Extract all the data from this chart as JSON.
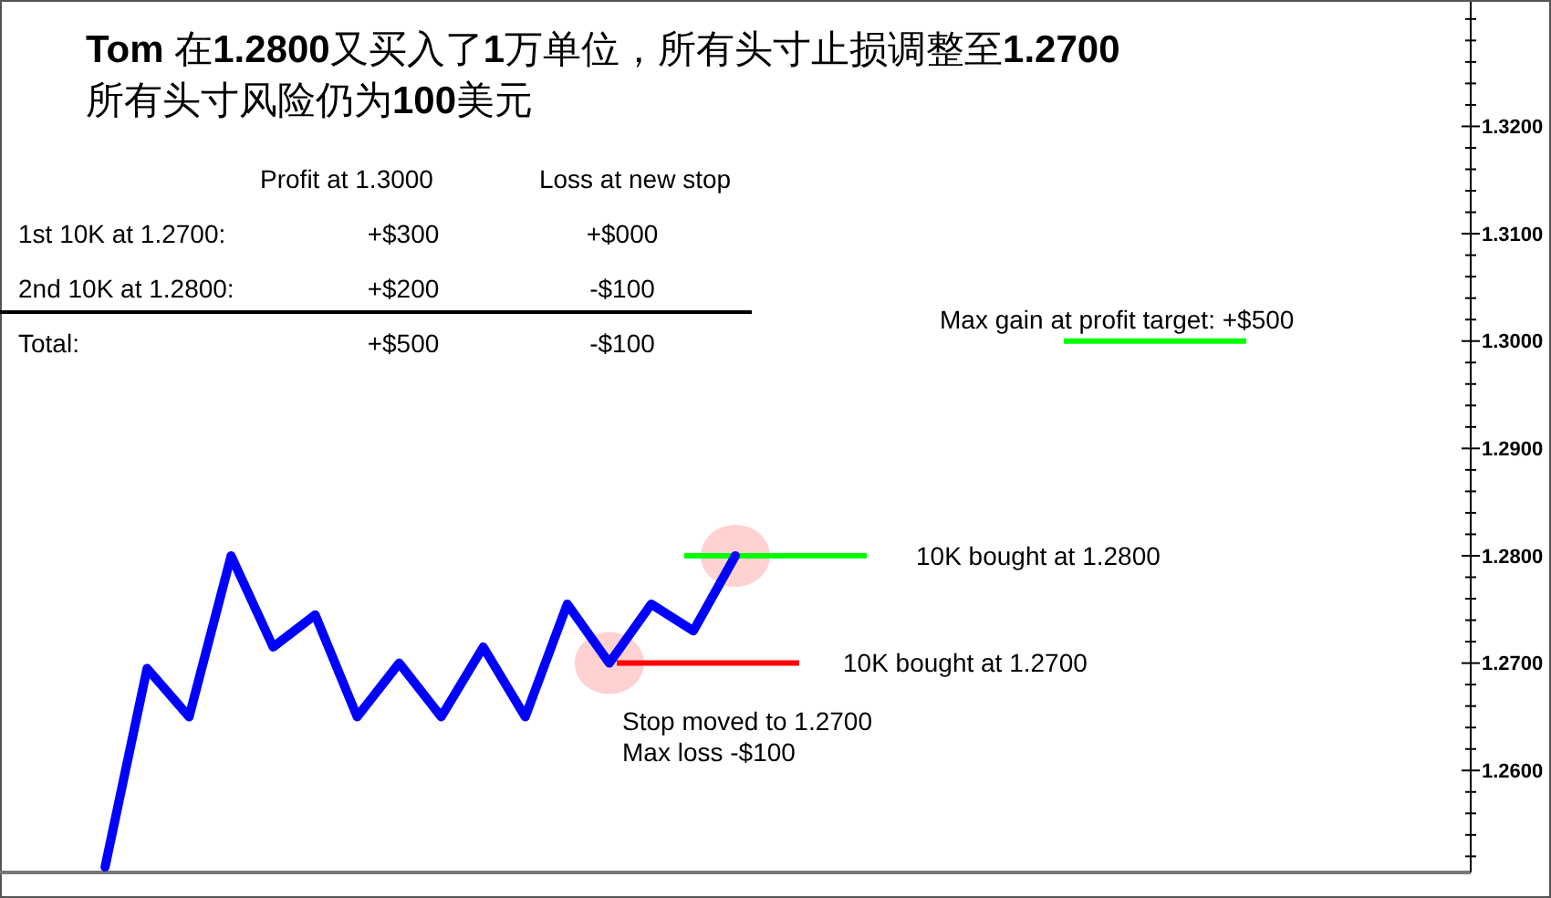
{
  "chart_data": {
    "type": "line",
    "title": "Tom 在1.2800又买入了1万单位，所有头寸止损调整至1.2700",
    "subtitle": "所有头寸风险仍为100美元",
    "categories": [
      null,
      null,
      null,
      null,
      null,
      null,
      null,
      null,
      null,
      null,
      null,
      null,
      null,
      null,
      null,
      null,
      null,
      null,
      null,
      null,
      null,
      null,
      null,
      null,
      null,
      null,
      null,
      null,
      null,
      null,
      null,
      null,
      null,
      null,
      null
    ],
    "series": [
      {
        "color": "#0000ff",
        "values": [
          null,
          null,
          1.251,
          1.2695,
          1.265,
          1.28,
          1.2715,
          1.2745,
          1.265,
          1.27,
          1.265,
          1.2715,
          1.265,
          1.2755,
          1.27,
          1.2755,
          1.273,
          1.28,
          null,
          null,
          null,
          null,
          null,
          null,
          null,
          null,
          null,
          null,
          null,
          null,
          null,
          null,
          null,
          null,
          null
        ]
      }
    ],
    "ylim": [
      1.2505,
      1.3316
    ],
    "yticks": [
      {
        "value": 1.252,
        "label": null
      },
      {
        "value": 1.254,
        "label": null
      },
      {
        "value": 1.256,
        "label": null
      },
      {
        "value": 1.258,
        "label": null
      },
      {
        "value": 1.26,
        "label": "1.2600"
      },
      {
        "value": 1.262,
        "label": null
      },
      {
        "value": 1.264,
        "label": null
      },
      {
        "value": 1.266,
        "label": null
      },
      {
        "value": 1.268,
        "label": null
      },
      {
        "value": 1.27,
        "label": "1.2700"
      },
      {
        "value": 1.272,
        "label": null
      },
      {
        "value": 1.274,
        "label": null
      },
      {
        "value": 1.276,
        "label": null
      },
      {
        "value": 1.278,
        "label": null
      },
      {
        "value": 1.28,
        "label": "1.2800"
      },
      {
        "value": 1.282,
        "label": null
      },
      {
        "value": 1.284,
        "label": null
      },
      {
        "value": 1.286,
        "label": null
      },
      {
        "value": 1.288,
        "label": null
      },
      {
        "value": 1.29,
        "label": "1.2900"
      },
      {
        "value": 1.292,
        "label": null
      },
      {
        "value": 1.294,
        "label": null
      },
      {
        "value": 1.296,
        "label": null
      },
      {
        "value": 1.298,
        "label": null
      },
      {
        "value": 1.3,
        "label": "1.3000"
      },
      {
        "value": 1.302,
        "label": null
      },
      {
        "value": 1.304,
        "label": null
      },
      {
        "value": 1.306,
        "label": null
      },
      {
        "value": 1.308,
        "label": null
      },
      {
        "value": 1.31,
        "label": "1.3100"
      },
      {
        "value": 1.312,
        "label": null
      },
      {
        "value": 1.314,
        "label": null
      },
      {
        "value": 1.316,
        "label": null
      },
      {
        "value": 1.318,
        "label": null
      },
      {
        "value": 1.32,
        "label": "1.3200"
      },
      {
        "value": 1.322,
        "label": null
      },
      {
        "value": 1.324,
        "label": null
      },
      {
        "value": 1.326,
        "label": null
      },
      {
        "value": 1.328,
        "label": null
      },
      {
        "value": 1.33,
        "label": null
      }
    ],
    "ref_lines": [
      {
        "axis": "y",
        "value": 1.28,
        "label": "10K bought at 1.2800",
        "color": "#00ff00"
      },
      {
        "axis": "y",
        "value": 1.27,
        "label": "10K bought at 1.2700",
        "color": "#ff0000"
      },
      {
        "axis": "y",
        "value": 1.3,
        "label": "Max gain at profit target: +$500",
        "color": "#00ff00"
      }
    ],
    "annotations": [
      "Stop moved to 1.2700",
      "Max loss -$100",
      "Profit at 1.3000",
      "Loss at new stop",
      "1st 10K at 1.2700:",
      "+$300",
      "+$000",
      "2nd 10K at 1.2800:",
      "+$200",
      "-$100",
      "Total:",
      "+$500",
      "-$100"
    ],
    "grid": false,
    "marker": "none",
    "line_style": "solid"
  }
}
